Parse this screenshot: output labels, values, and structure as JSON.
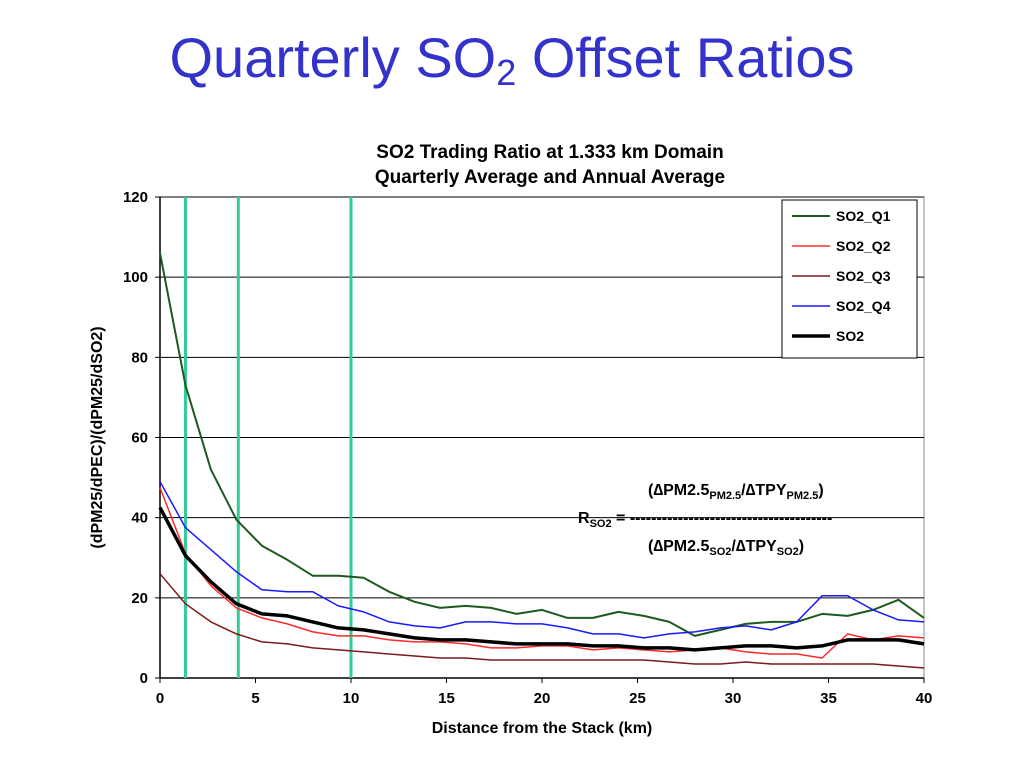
{
  "slide": {
    "title_main": "Quarterly SO",
    "title_sub": "2",
    "title_rest": " Offset Ratios"
  },
  "chart_data": {
    "type": "line",
    "title": "SO2 Trading Ratio at 1.333 km Domain",
    "subtitle": "Quarterly Average and Annual Average",
    "xlabel": "Distance from the Stack (km)",
    "ylabel": "(dPM25/dPEC)/(dPM25/dSO2)",
    "xlim": [
      0,
      40
    ],
    "ylim": [
      0,
      120
    ],
    "x_ticks": [
      0,
      5,
      10,
      15,
      20,
      25,
      30,
      35,
      40
    ],
    "y_ticks": [
      0,
      20,
      40,
      60,
      80,
      100,
      120
    ],
    "grid": "horizontal",
    "legend_position": "top-right",
    "x": [
      0,
      1.333,
      2.667,
      4,
      5.333,
      6.667,
      8,
      9.333,
      10.667,
      12,
      13.333,
      14.667,
      16,
      17.333,
      18.667,
      20,
      21.333,
      22.667,
      24,
      25.333,
      26.667,
      28,
      29.333,
      30.667,
      32,
      33.333,
      34.667,
      36,
      37.333,
      38.667,
      40
    ],
    "series": [
      {
        "name": "SO2_Q1",
        "color": "#1e5a1e",
        "width": 2,
        "values": [
          106,
          73,
          52,
          39.5,
          33,
          29.5,
          25.5,
          25.5,
          25,
          21.5,
          19,
          17.5,
          18,
          17.5,
          16,
          17,
          15,
          15,
          16.5,
          15.5,
          14,
          10.5,
          12,
          13.5,
          14,
          14,
          16,
          15.5,
          17,
          19.5,
          15
        ]
      },
      {
        "name": "SO2_Q2",
        "color": "#ff2a2a",
        "width": 1.5,
        "values": [
          47.5,
          31,
          23,
          17.5,
          15,
          13.5,
          11.5,
          10.5,
          10.5,
          9.5,
          9,
          9,
          8.5,
          7.5,
          7.5,
          8,
          8,
          7,
          7.5,
          7,
          6.5,
          7,
          7.5,
          6.5,
          6,
          6,
          5,
          11,
          9.5,
          10.5,
          10
        ]
      },
      {
        "name": "SO2_Q3",
        "color": "#7a1a1a",
        "width": 1.5,
        "values": [
          26,
          18.5,
          14,
          11,
          9,
          8.5,
          7.5,
          7,
          6.5,
          6,
          5.5,
          5,
          5,
          4.5,
          4.5,
          4.5,
          4.5,
          4.5,
          4.5,
          4.5,
          4,
          3.5,
          3.5,
          4,
          3.5,
          3.5,
          3.5,
          3.5,
          3.5,
          3,
          2.5
        ]
      },
      {
        "name": "SO2_Q4",
        "color": "#1a1aff",
        "width": 1.5,
        "values": [
          49,
          37.5,
          32,
          26.5,
          22,
          21.5,
          21.5,
          18,
          16.5,
          14,
          13,
          12.5,
          14,
          14,
          13.5,
          13.5,
          12.5,
          11,
          11,
          10,
          11,
          11.5,
          12.5,
          13,
          12,
          14,
          20.5,
          20.5,
          17,
          14.5,
          14
        ]
      },
      {
        "name": "SO2",
        "color": "#000000",
        "width": 3.5,
        "values": [
          42.5,
          30.5,
          24,
          18.5,
          16,
          15.5,
          14,
          12.5,
          12,
          11,
          10,
          9.5,
          9.5,
          9,
          8.5,
          8.5,
          8.5,
          8,
          8,
          7.5,
          7.5,
          7,
          7.5,
          8,
          8,
          7.5,
          8,
          9.5,
          9.5,
          9.5,
          8.5
        ]
      }
    ],
    "vertical_markers": {
      "x": [
        1.333,
        4.1,
        10
      ],
      "color": "#33cc99"
    },
    "formula": {
      "lhs_main": "R",
      "lhs_sub": "SO2",
      "equals": " = ",
      "dashes": "--------------------------------------",
      "num_open": "(∆PM2.5",
      "num_sub1": "PM2.5",
      "num_mid": "/∆TPY",
      "num_sub2": "PM2.5",
      "num_close": ")",
      "den_open": "(∆PM2.5",
      "den_sub1": "SO2",
      "den_mid": "/∆TPY",
      "den_sub2": "SO2",
      "den_close": ")"
    }
  }
}
